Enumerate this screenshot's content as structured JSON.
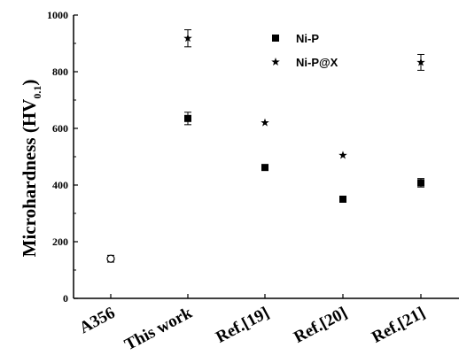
{
  "chart_data": {
    "type": "scatter",
    "title": "",
    "ylabel": "Microhardness (HV",
    "ylabel_sub": "0.1",
    "ylabel_close": ")",
    "xlabel": "",
    "ylim": [
      0,
      1000
    ],
    "yticks": [
      "0",
      "200",
      "400",
      "600",
      "800",
      "1000"
    ],
    "ytick_values": [
      0,
      200,
      400,
      600,
      800,
      1000
    ],
    "categories": [
      "A356",
      "This work",
      "Ref.[19]",
      "Ref.[20]",
      "Ref.[21]"
    ],
    "series": [
      {
        "name": "",
        "marker": "open-circle",
        "values": [
          140,
          null,
          null,
          null,
          null
        ],
        "errors": [
          12,
          null,
          null,
          null,
          null
        ]
      },
      {
        "name": "Ni-P",
        "marker": "filled-square",
        "values": [
          null,
          635,
          462,
          350,
          408
        ],
        "errors": [
          null,
          22,
          null,
          null,
          15
        ]
      },
      {
        "name": "Ni-P@X",
        "marker": "star",
        "values": [
          null,
          918,
          620,
          505,
          833
        ],
        "errors": [
          null,
          30,
          null,
          null,
          28
        ]
      }
    ],
    "legend_position": "top-right",
    "grid": false
  }
}
